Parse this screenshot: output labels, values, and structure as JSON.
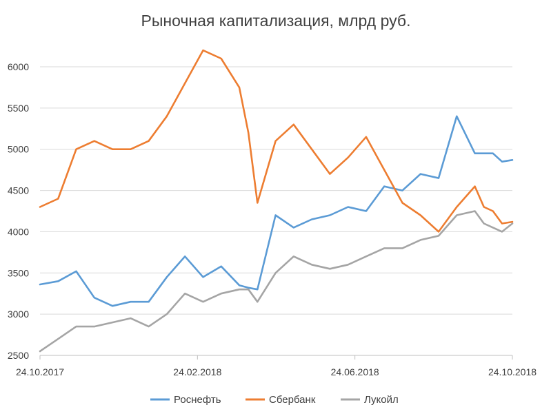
{
  "chart_data": {
    "type": "line",
    "title": "Рыночная капитализация, млрд руб.",
    "xlabel": "",
    "ylabel": "",
    "ylim": [
      2500,
      6500
    ],
    "yticks": [
      2500,
      3000,
      3500,
      4000,
      4500,
      5000,
      5500,
      6000
    ],
    "x_tick_labels": [
      "24.10.2017",
      "24.02.2018",
      "24.06.2018",
      "24.10.2018"
    ],
    "grid": true,
    "legend_position": "bottom",
    "x": [
      "2017-10-24",
      "2017-11-07",
      "2017-11-21",
      "2017-12-05",
      "2017-12-19",
      "2018-01-02",
      "2018-01-16",
      "2018-01-30",
      "2018-02-13",
      "2018-02-27",
      "2018-03-13",
      "2018-03-27",
      "2018-04-03",
      "2018-04-10",
      "2018-04-24",
      "2018-05-08",
      "2018-05-22",
      "2018-06-05",
      "2018-06-19",
      "2018-07-03",
      "2018-07-17",
      "2018-07-31",
      "2018-08-14",
      "2018-08-28",
      "2018-09-11",
      "2018-09-25",
      "2018-10-02",
      "2018-10-09",
      "2018-10-16",
      "2018-10-24"
    ],
    "series": [
      {
        "name": "Роснефть",
        "color": "#5B9BD5",
        "values": [
          3360,
          3400,
          3520,
          3200,
          3100,
          3150,
          3150,
          3450,
          3700,
          3450,
          3580,
          3350,
          3320,
          3300,
          4200,
          4050,
          4150,
          4200,
          4300,
          4250,
          4550,
          4500,
          4700,
          4650,
          5400,
          4950,
          4950,
          4950,
          4850,
          4870
        ]
      },
      {
        "name": "Сбербанк",
        "color": "#ED7D31",
        "values": [
          4300,
          4400,
          5000,
          5100,
          5000,
          5000,
          5100,
          5400,
          5800,
          6200,
          6100,
          5750,
          5200,
          4350,
          5100,
          5300,
          5000,
          4700,
          4900,
          5150,
          4750,
          4350,
          4200,
          4000,
          4300,
          4550,
          4300,
          4250,
          4100,
          4120
        ]
      },
      {
        "name": "Лукойл",
        "color": "#A5A5A5",
        "values": [
          2550,
          2700,
          2850,
          2850,
          2900,
          2950,
          2850,
          3000,
          3250,
          3150,
          3250,
          3300,
          3300,
          3150,
          3500,
          3700,
          3600,
          3550,
          3600,
          3700,
          3800,
          3800,
          3900,
          3950,
          4200,
          4250,
          4100,
          4050,
          4000,
          4100
        ]
      }
    ]
  }
}
